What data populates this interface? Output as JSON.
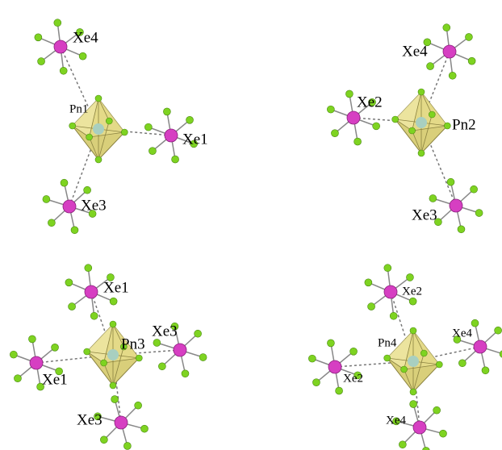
{
  "panels": [
    {
      "labels": [
        "Xe4",
        "Pn1",
        "Xe1",
        "Xe3"
      ]
    },
    {
      "labels": [
        "Xe4",
        "Xe2",
        "Pn2",
        "Xe3"
      ]
    },
    {
      "labels": [
        "Xe1",
        "Xe1",
        "Xe3",
        "Xe3",
        "Pn3"
      ]
    },
    {
      "labels": [
        "Xe2",
        "Xe2",
        "Xe4",
        "Xe4",
        "Pn4"
      ]
    }
  ]
}
